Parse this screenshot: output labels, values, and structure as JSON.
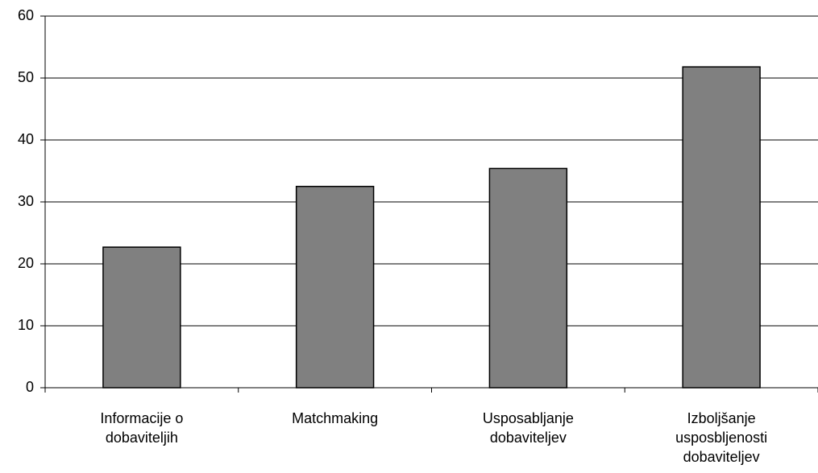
{
  "chart_data": {
    "type": "bar",
    "categories": [
      "Informacije o\ndobaviteljih",
      "Matchmaking",
      "Usposabljanje\ndobaviteljev",
      "Izboljšanje\nusposbljenosti\ndobaviteljev"
    ],
    "values": [
      22.7,
      32.5,
      35.4,
      51.8
    ],
    "color": "#808080",
    "ylim": [
      0,
      60
    ],
    "yticks": [
      0,
      10,
      20,
      30,
      40,
      50,
      60
    ],
    "grid": true
  }
}
